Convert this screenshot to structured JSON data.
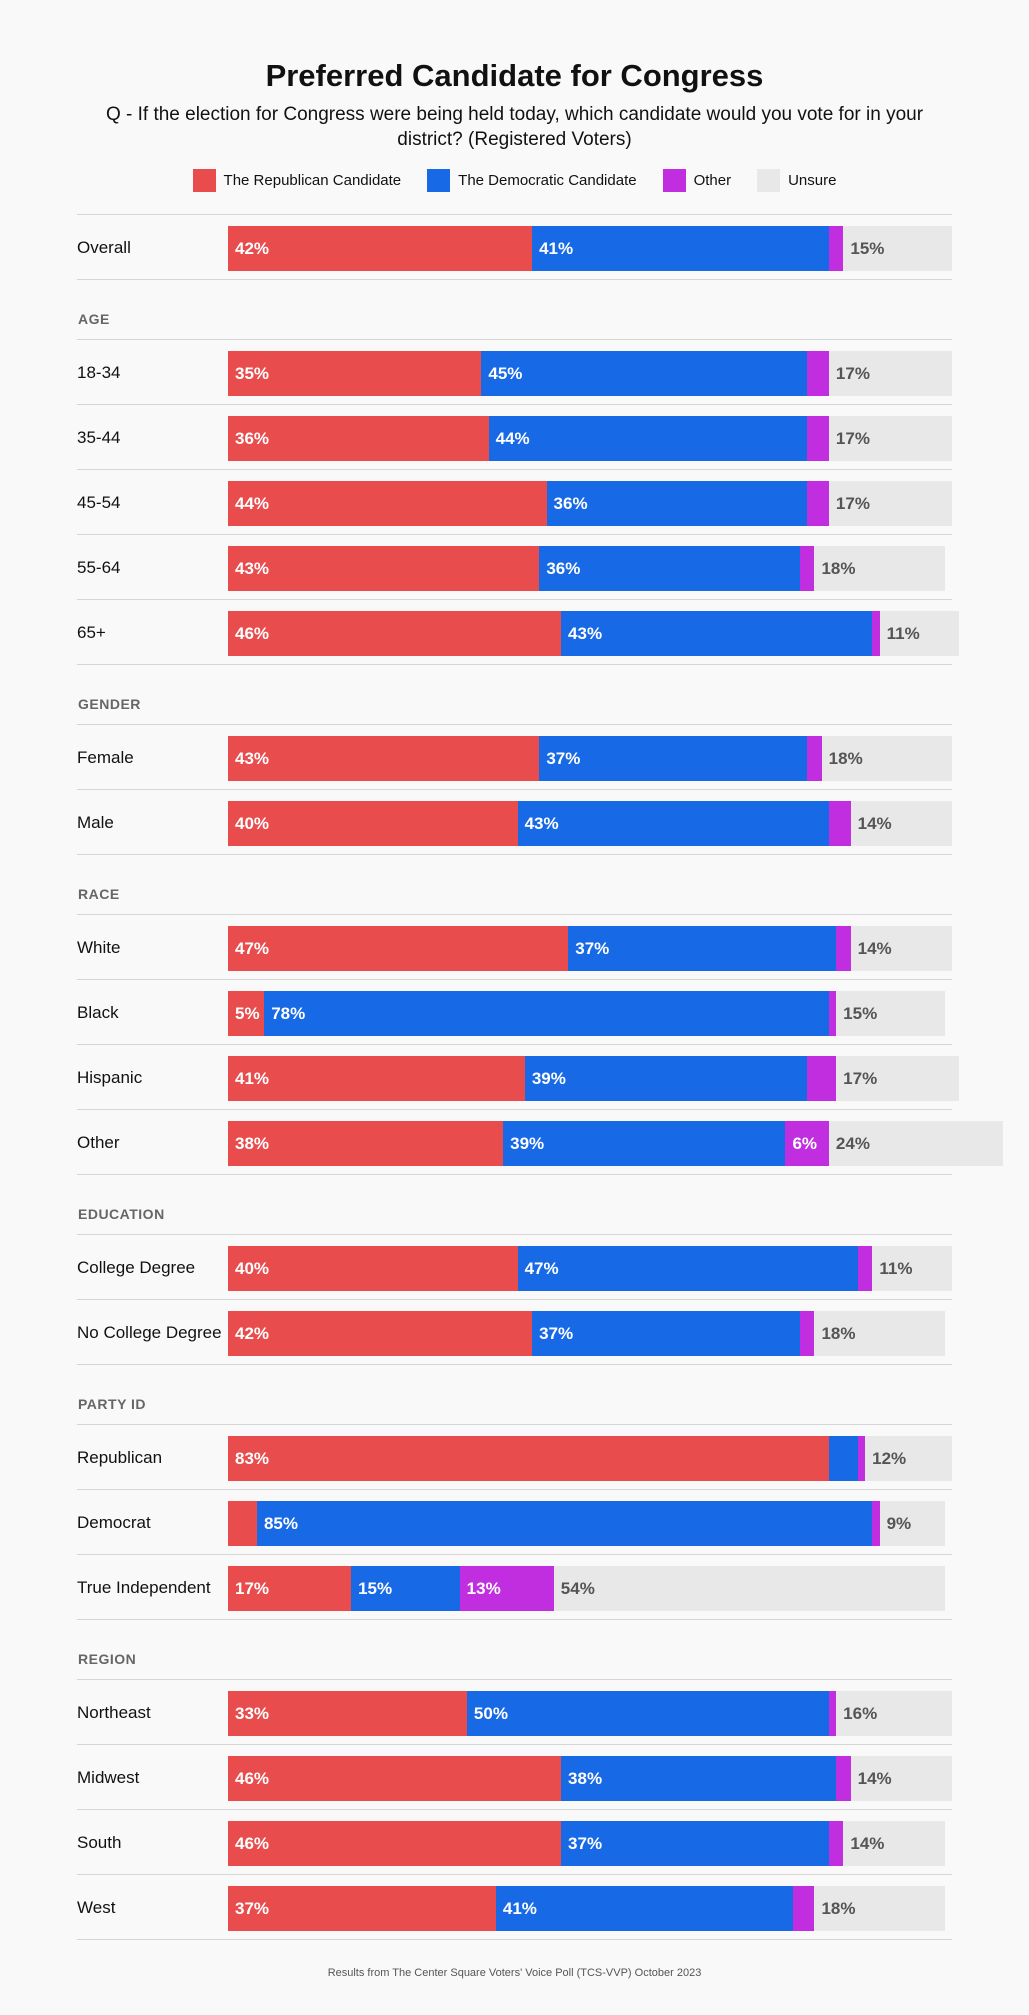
{
  "colors": {
    "republican": "#e84c4c",
    "democratic": "#1769e6",
    "other": "#c12ee0",
    "unsure": "#e8e8e8",
    "label_dark": "#555555",
    "label_light": "#ffffff"
  },
  "chart_data": {
    "type": "bar",
    "orientation": "horizontal-stacked",
    "title": "Preferred Candidate for Congress",
    "subtitle": "Q - If the election for Congress were being held today, which candidate would you vote for in your district? (Registered Voters)",
    "legend": [
      "The Republican Candidate",
      "The Democratic Candidate",
      "Other",
      "Unsure"
    ],
    "footer": "Results from The Center Square Voters' Voice Poll (TCS-VVP) October 2023",
    "groups": [
      {
        "section": "",
        "rows": [
          {
            "label": "Overall",
            "values": [
              42,
              41,
              2,
              15
            ]
          }
        ]
      },
      {
        "section": "AGE",
        "rows": [
          {
            "label": "18-34",
            "values": [
              35,
              45,
              3,
              17
            ]
          },
          {
            "label": "35-44",
            "values": [
              36,
              44,
              3,
              17
            ]
          },
          {
            "label": "45-54",
            "values": [
              44,
              36,
              3,
              17
            ]
          },
          {
            "label": "55-64",
            "values": [
              43,
              36,
              2,
              18
            ]
          },
          {
            "label": "65+",
            "values": [
              46,
              43,
              1,
              11
            ]
          }
        ]
      },
      {
        "section": "GENDER",
        "rows": [
          {
            "label": "Female",
            "values": [
              43,
              37,
              2,
              18
            ]
          },
          {
            "label": "Male",
            "values": [
              40,
              43,
              3,
              14
            ]
          }
        ]
      },
      {
        "section": "RACE",
        "rows": [
          {
            "label": "White",
            "values": [
              47,
              37,
              2,
              14
            ]
          },
          {
            "label": "Black",
            "values": [
              5,
              78,
              1,
              15
            ]
          },
          {
            "label": "Hispanic",
            "values": [
              41,
              39,
              4,
              17
            ]
          },
          {
            "label": "Other",
            "values": [
              38,
              39,
              6,
              24
            ]
          }
        ]
      },
      {
        "section": "EDUCATION",
        "rows": [
          {
            "label": "College Degree",
            "values": [
              40,
              47,
              2,
              11
            ]
          },
          {
            "label": "No College Degree",
            "values": [
              42,
              37,
              2,
              18
            ]
          }
        ]
      },
      {
        "section": "PARTY ID",
        "rows": [
          {
            "label": "Republican",
            "values": [
              83,
              4,
              1,
              12
            ]
          },
          {
            "label": "Democrat",
            "values": [
              4,
              85,
              1,
              9
            ]
          },
          {
            "label": "True Independent",
            "values": [
              17,
              15,
              13,
              54
            ]
          }
        ]
      },
      {
        "section": "REGION",
        "rows": [
          {
            "label": "Northeast",
            "values": [
              33,
              50,
              1,
              16
            ]
          },
          {
            "label": "Midwest",
            "values": [
              46,
              38,
              2,
              14
            ]
          },
          {
            "label": "South",
            "values": [
              46,
              37,
              2,
              14
            ]
          },
          {
            "label": "West",
            "values": [
              37,
              41,
              3,
              18
            ]
          }
        ]
      }
    ],
    "label_threshold_percent": 5,
    "xlim": [
      0,
      100
    ]
  }
}
